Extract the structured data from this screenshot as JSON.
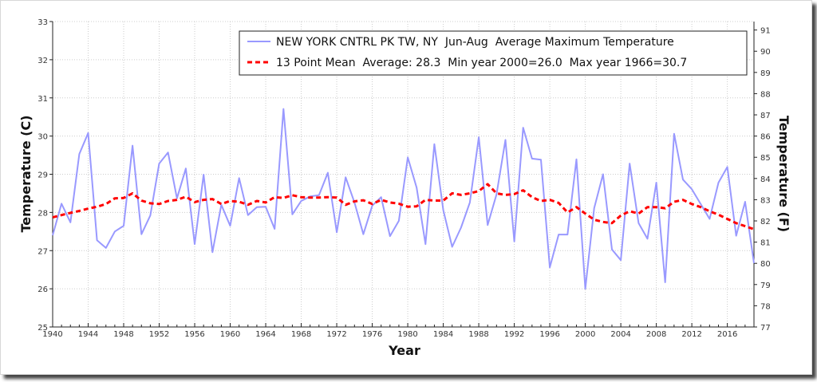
{
  "chart_data": {
    "type": "line",
    "title": "",
    "xlabel": "Year",
    "ylabel": "Temperature (C)",
    "ylabel_right": "Temperature (F)",
    "xlim": [
      1940,
      2019
    ],
    "ylim": [
      25,
      33
    ],
    "ylim_right": [
      77,
      91.4
    ],
    "x_ticks": [
      1940,
      1944,
      1948,
      1952,
      1956,
      1960,
      1964,
      1968,
      1972,
      1976,
      1980,
      1984,
      1988,
      1992,
      1996,
      2000,
      2004,
      2008,
      2012,
      2016
    ],
    "y_ticks": [
      25,
      26,
      27,
      28,
      29,
      30,
      31,
      32,
      33
    ],
    "y_ticks_right": [
      77,
      78,
      79,
      80,
      81,
      82,
      83,
      84,
      85,
      86,
      87,
      88,
      89,
      90,
      91
    ],
    "grid": true,
    "legend_position": "top-right",
    "x": [
      1940,
      1941,
      1942,
      1943,
      1944,
      1945,
      1946,
      1947,
      1948,
      1949,
      1950,
      1951,
      1952,
      1953,
      1954,
      1955,
      1956,
      1957,
      1958,
      1959,
      1960,
      1961,
      1962,
      1963,
      1964,
      1965,
      1966,
      1967,
      1968,
      1969,
      1970,
      1971,
      1972,
      1973,
      1974,
      1975,
      1976,
      1977,
      1978,
      1979,
      1980,
      1981,
      1982,
      1983,
      1984,
      1985,
      1986,
      1987,
      1988,
      1989,
      1990,
      1991,
      1992,
      1993,
      1994,
      1995,
      1996,
      1997,
      1998,
      1999,
      2000,
      2001,
      2002,
      2003,
      2004,
      2005,
      2006,
      2007,
      2008,
      2009,
      2010,
      2011,
      2012,
      2013,
      2014,
      2015,
      2016,
      2017,
      2018,
      2019
    ],
    "series": [
      {
        "name": "NEW YORK CNTRL PK TW, NY  Jun-Aug  Average Maximum Temperature",
        "color": "#9999ff",
        "style": "solid",
        "values": [
          27.4,
          28.23,
          27.74,
          29.53,
          30.08,
          27.27,
          27.07,
          27.5,
          27.65,
          29.75,
          27.43,
          27.92,
          29.28,
          29.57,
          28.37,
          29.15,
          27.17,
          28.99,
          26.96,
          28.2,
          27.65,
          28.9,
          27.93,
          28.14,
          28.15,
          27.57,
          30.71,
          27.95,
          28.3,
          28.42,
          28.45,
          29.04,
          27.48,
          28.92,
          28.26,
          27.43,
          28.18,
          28.4,
          27.38,
          27.78,
          29.44,
          28.65,
          27.17,
          29.79,
          28.06,
          27.1,
          27.6,
          28.26,
          29.97,
          27.67,
          28.47,
          29.9,
          27.24,
          30.22,
          29.41,
          29.38,
          26.56,
          27.42,
          27.42,
          29.39,
          26.0,
          28.11,
          29.0,
          27.03,
          26.75,
          29.28,
          27.72,
          27.31,
          28.78,
          26.17,
          30.06,
          28.86,
          28.61,
          28.22,
          27.83,
          28.78,
          29.19,
          27.39,
          28.28,
          26.67
        ]
      },
      {
        "name": "13 Point Mean  Average: 28.3  Min year 2000=26.0  Max year 1966=30.7",
        "color": "#ff0000",
        "style": "dashed",
        "values": [
          27.87,
          27.93,
          27.99,
          28.04,
          28.1,
          28.15,
          28.22,
          28.37,
          28.38,
          28.5,
          28.31,
          28.24,
          28.22,
          28.3,
          28.33,
          28.41,
          28.27,
          28.33,
          28.35,
          28.22,
          28.3,
          28.28,
          28.2,
          28.3,
          28.26,
          28.4,
          28.38,
          28.45,
          28.4,
          28.39,
          28.39,
          28.4,
          28.39,
          28.2,
          28.29,
          28.32,
          28.22,
          28.33,
          28.26,
          28.23,
          28.15,
          28.16,
          28.33,
          28.31,
          28.31,
          28.5,
          28.46,
          28.5,
          28.56,
          28.74,
          28.5,
          28.46,
          28.48,
          28.58,
          28.4,
          28.3,
          28.33,
          28.25,
          28.0,
          28.14,
          27.97,
          27.81,
          27.75,
          27.72,
          27.92,
          28.03,
          27.97,
          28.14,
          28.14,
          28.11,
          28.28,
          28.33,
          28.22,
          28.14,
          28.03,
          27.94,
          27.83,
          27.72,
          27.64,
          27.56
        ]
      }
    ]
  }
}
